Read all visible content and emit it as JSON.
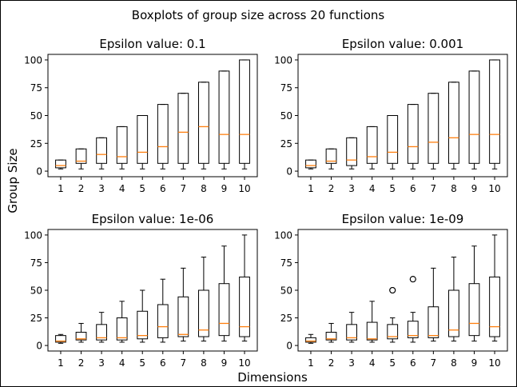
{
  "figure": {
    "suptitle": "Boxplots of group size across 20 functions",
    "xlabel": "Dimensions",
    "ylabel": "Group Size"
  },
  "colors": {
    "box": "#000000",
    "median": "#ff7f0e",
    "flier": "#000000"
  },
  "chart_data": [
    {
      "type": "boxplot",
      "title": "Epsilon value: 0.1",
      "categories": [
        "1",
        "2",
        "3",
        "4",
        "5",
        "6",
        "7",
        "8",
        "9",
        "10"
      ],
      "yticks": [
        0,
        25,
        50,
        75,
        100
      ],
      "ylim": [
        -5,
        105
      ],
      "boxes": [
        {
          "whislo": 2,
          "q1": 3,
          "med": 5,
          "q3": 10,
          "whishi": 10,
          "fliers": []
        },
        {
          "whislo": 2,
          "q1": 7,
          "med": 9,
          "q3": 20,
          "whishi": 20,
          "fliers": []
        },
        {
          "whislo": 2,
          "q1": 7,
          "med": 15,
          "q3": 30,
          "whishi": 30,
          "fliers": []
        },
        {
          "whislo": 2,
          "q1": 7,
          "med": 13,
          "q3": 40,
          "whishi": 40,
          "fliers": []
        },
        {
          "whislo": 2,
          "q1": 7,
          "med": 17,
          "q3": 50,
          "whishi": 50,
          "fliers": []
        },
        {
          "whislo": 2,
          "q1": 7,
          "med": 22,
          "q3": 60,
          "whishi": 60,
          "fliers": []
        },
        {
          "whislo": 2,
          "q1": 7,
          "med": 35,
          "q3": 70,
          "whishi": 70,
          "fliers": []
        },
        {
          "whislo": 2,
          "q1": 7,
          "med": 40,
          "q3": 80,
          "whishi": 80,
          "fliers": []
        },
        {
          "whislo": 2,
          "q1": 7,
          "med": 33,
          "q3": 90,
          "whishi": 90,
          "fliers": []
        },
        {
          "whislo": 2,
          "q1": 7,
          "med": 33,
          "q3": 100,
          "whishi": 100,
          "fliers": []
        }
      ]
    },
    {
      "type": "boxplot",
      "title": "Epsilon value: 0.001",
      "categories": [
        "1",
        "2",
        "3",
        "4",
        "5",
        "6",
        "7",
        "8",
        "9",
        "10"
      ],
      "yticks": [
        0,
        25,
        50,
        75,
        100
      ],
      "ylim": [
        -5,
        105
      ],
      "boxes": [
        {
          "whislo": 2,
          "q1": 3,
          "med": 5,
          "q3": 10,
          "whishi": 10,
          "fliers": []
        },
        {
          "whislo": 2,
          "q1": 7,
          "med": 9,
          "q3": 20,
          "whishi": 20,
          "fliers": []
        },
        {
          "whislo": 2,
          "q1": 5,
          "med": 10,
          "q3": 30,
          "whishi": 30,
          "fliers": []
        },
        {
          "whislo": 2,
          "q1": 7,
          "med": 13,
          "q3": 40,
          "whishi": 40,
          "fliers": []
        },
        {
          "whislo": 2,
          "q1": 7,
          "med": 17,
          "q3": 50,
          "whishi": 50,
          "fliers": []
        },
        {
          "whislo": 2,
          "q1": 7,
          "med": 22,
          "q3": 60,
          "whishi": 60,
          "fliers": []
        },
        {
          "whislo": 2,
          "q1": 7,
          "med": 26,
          "q3": 70,
          "whishi": 70,
          "fliers": []
        },
        {
          "whislo": 2,
          "q1": 7,
          "med": 30,
          "q3": 80,
          "whishi": 80,
          "fliers": []
        },
        {
          "whislo": 2,
          "q1": 7,
          "med": 33,
          "q3": 90,
          "whishi": 90,
          "fliers": []
        },
        {
          "whislo": 2,
          "q1": 7,
          "med": 33,
          "q3": 100,
          "whishi": 100,
          "fliers": []
        }
      ]
    },
    {
      "type": "boxplot",
      "title": "Epsilon value: 1e-06",
      "categories": [
        "1",
        "2",
        "3",
        "4",
        "5",
        "6",
        "7",
        "8",
        "9",
        "10"
      ],
      "yticks": [
        0,
        25,
        50,
        75,
        100
      ],
      "ylim": [
        -5,
        105
      ],
      "boxes": [
        {
          "whislo": 2,
          "q1": 3,
          "med": 4,
          "q3": 9,
          "whishi": 10,
          "fliers": []
        },
        {
          "whislo": 3,
          "q1": 5,
          "med": 6,
          "q3": 12,
          "whishi": 20,
          "fliers": []
        },
        {
          "whislo": 3,
          "q1": 5,
          "med": 7,
          "q3": 19,
          "whishi": 30,
          "fliers": []
        },
        {
          "whislo": 3,
          "q1": 5,
          "med": 7,
          "q3": 25,
          "whishi": 40,
          "fliers": []
        },
        {
          "whislo": 3,
          "q1": 6,
          "med": 9,
          "q3": 31,
          "whishi": 50,
          "fliers": []
        },
        {
          "whislo": 3,
          "q1": 7,
          "med": 17,
          "q3": 37,
          "whishi": 60,
          "fliers": []
        },
        {
          "whislo": 4,
          "q1": 8,
          "med": 10,
          "q3": 44,
          "whishi": 70,
          "fliers": []
        },
        {
          "whislo": 4,
          "q1": 8,
          "med": 14,
          "q3": 50,
          "whishi": 80,
          "fliers": []
        },
        {
          "whislo": 4,
          "q1": 9,
          "med": 20,
          "q3": 56,
          "whishi": 90,
          "fliers": []
        },
        {
          "whislo": 4,
          "q1": 8,
          "med": 17,
          "q3": 62,
          "whishi": 100,
          "fliers": []
        }
      ]
    },
    {
      "type": "boxplot",
      "title": "Epsilon value: 1e-09",
      "categories": [
        "1",
        "2",
        "3",
        "4",
        "5",
        "6",
        "7",
        "8",
        "9",
        "10"
      ],
      "yticks": [
        0,
        25,
        50,
        75,
        100
      ],
      "ylim": [
        -5,
        105
      ],
      "boxes": [
        {
          "whislo": 2,
          "q1": 3,
          "med": 4,
          "q3": 7,
          "whishi": 10,
          "fliers": []
        },
        {
          "whislo": 3,
          "q1": 5,
          "med": 6,
          "q3": 12,
          "whishi": 20,
          "fliers": []
        },
        {
          "whislo": 3,
          "q1": 5,
          "med": 7,
          "q3": 19,
          "whishi": 30,
          "fliers": []
        },
        {
          "whislo": 3,
          "q1": 5,
          "med": 6,
          "q3": 21,
          "whishi": 40,
          "fliers": []
        },
        {
          "whislo": 3,
          "q1": 6,
          "med": 8,
          "q3": 19,
          "whishi": 25,
          "fliers": [
            50,
            50
          ]
        },
        {
          "whislo": 3,
          "q1": 7,
          "med": 9,
          "q3": 22,
          "whishi": 30,
          "fliers": [
            60,
            60
          ]
        },
        {
          "whislo": 4,
          "q1": 7,
          "med": 9,
          "q3": 35,
          "whishi": 70,
          "fliers": []
        },
        {
          "whislo": 4,
          "q1": 8,
          "med": 14,
          "q3": 50,
          "whishi": 80,
          "fliers": []
        },
        {
          "whislo": 4,
          "q1": 9,
          "med": 20,
          "q3": 56,
          "whishi": 90,
          "fliers": []
        },
        {
          "whislo": 4,
          "q1": 8,
          "med": 17,
          "q3": 62,
          "whishi": 100,
          "fliers": []
        }
      ]
    }
  ]
}
